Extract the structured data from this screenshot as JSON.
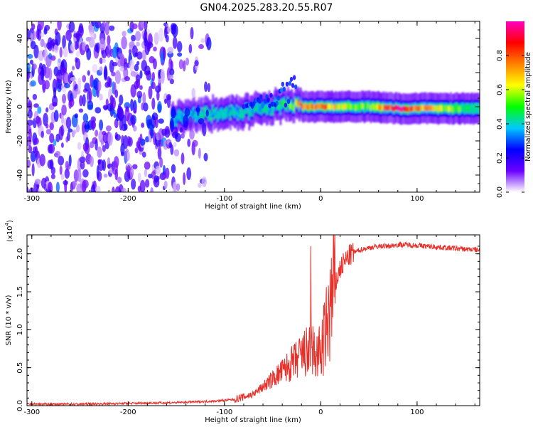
{
  "title": "GN04.2025.283.20.55.R07",
  "chart_data": [
    {
      "type": "heatmap",
      "xlabel": "Height of straight line (km)",
      "ylabel": "Frequency (Hz)",
      "xlim": [
        -305,
        165
      ],
      "ylim": [
        -50,
        50
      ],
      "xticks": [
        -300,
        -200,
        -100,
        0,
        100
      ],
      "yticks": [
        -40,
        -20,
        0,
        20,
        40
      ],
      "colorbar": {
        "label": "Normalized spectral amplitude",
        "range": [
          0.0,
          1.0
        ],
        "ticks": [
          "0.0",
          "0.2",
          "0.4",
          "0.6",
          "0.8"
        ],
        "colormap": [
          "#ffffff",
          "#6a00ff",
          "#0000ff",
          "#00c8ff",
          "#00ff00",
          "#ffff00",
          "#ff8000",
          "#ff0000",
          "#ff00c0"
        ]
      },
      "ridge": [
        {
          "x": -150,
          "freq": -6,
          "amp": 0.35
        },
        {
          "x": -130,
          "freq": -5,
          "amp": 0.38
        },
        {
          "x": -110,
          "freq": -4,
          "amp": 0.38
        },
        {
          "x": -90,
          "freq": -4,
          "amp": 0.4
        },
        {
          "x": -70,
          "freq": -2,
          "amp": 0.38
        },
        {
          "x": -50,
          "freq": 0,
          "amp": 0.4
        },
        {
          "x": -30,
          "freq": 1,
          "amp": 0.55
        },
        {
          "x": -20,
          "freq": 0,
          "amp": 0.8
        },
        {
          "x": 0,
          "freq": 0,
          "amp": 0.75
        },
        {
          "x": 50,
          "freq": 0,
          "amp": 0.5
        },
        {
          "x": 80,
          "freq": -1,
          "amp": 0.95
        },
        {
          "x": 120,
          "freq": -1,
          "amp": 0.6
        },
        {
          "x": 160,
          "freq": -1,
          "amp": 0.45
        }
      ]
    },
    {
      "type": "line",
      "xlabel": "Height of straight line (km)",
      "ylabel": "SNR (10 * v/v)",
      "y_multiplier": "(x10",
      "y_multiplier_exp": "4",
      "xlim": [
        -305,
        165
      ],
      "ylim": [
        0,
        2.25
      ],
      "xticks": [
        -300,
        -200,
        -100,
        0,
        100
      ],
      "yticks": [
        "0.0",
        "0.5",
        "1.0",
        "1.5",
        "2.0"
      ],
      "series": [
        {
          "color": "#e8302a",
          "x": [
            -305,
            -250,
            -200,
            -150,
            -130,
            -110,
            -90,
            -70,
            -60,
            -50,
            -40,
            -30,
            -25,
            -20,
            -15,
            -10,
            -5,
            0,
            5,
            10,
            15,
            20,
            25,
            30,
            40,
            50,
            60,
            70,
            80,
            90,
            100,
            110,
            120,
            140,
            165
          ],
          "y": [
            0.02,
            0.02,
            0.03,
            0.04,
            0.05,
            0.06,
            0.08,
            0.15,
            0.25,
            0.35,
            0.45,
            0.55,
            0.6,
            0.65,
            0.7,
            0.75,
            0.65,
            0.7,
            0.95,
            1.3,
            1.6,
            1.8,
            1.9,
            1.98,
            2.05,
            2.08,
            2.1,
            2.1,
            2.12,
            2.12,
            2.11,
            2.1,
            2.09,
            2.07,
            2.05
          ]
        }
      ]
    }
  ]
}
